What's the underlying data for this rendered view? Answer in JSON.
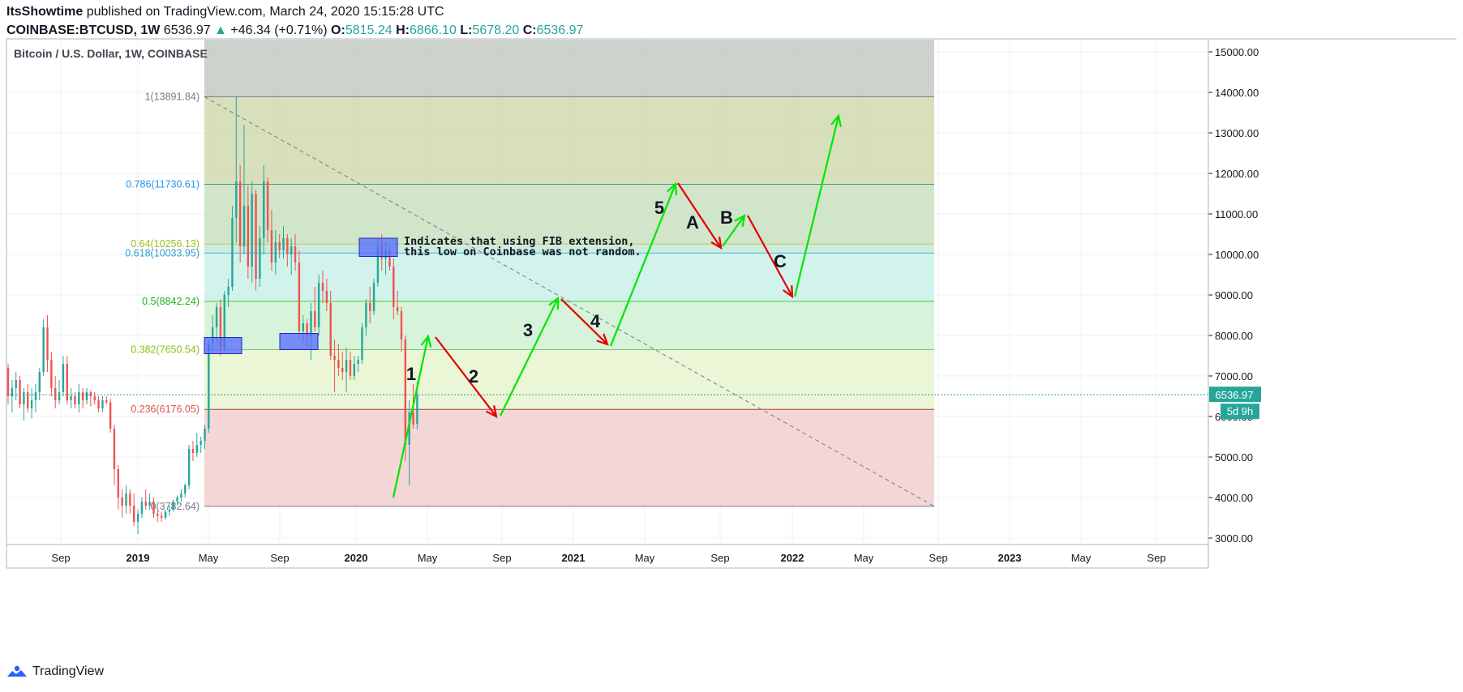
{
  "header": {
    "author": "ItsShowtime",
    "published_text": "published on TradingView.com, March 24, 2020 15:15:28 UTC",
    "symbol": "COINBASE:BTCUSD, 1W",
    "last_price": "6536.97",
    "change_arrow": "▲",
    "change": "+46.34 (+0.71%)",
    "o_label": "O:",
    "o_value": "5815.24",
    "h_label": "H:",
    "h_value": "6866.10",
    "l_label": "L:",
    "l_value": "5678.20",
    "c_label": "C:",
    "c_value": "6536.97"
  },
  "brand": {
    "name": "TradingView"
  },
  "colors": {
    "up": "#26a69a",
    "down": "#ef5350",
    "green_arrow": "#00e600",
    "red_arrow": "#e00000",
    "fib_blue": "#2196f3",
    "box_blue": "#3b4fd8"
  },
  "chart_data": {
    "type": "candlestick",
    "title": "Bitcoin / U.S. Dollar, 1W, COINBASE",
    "ylim": [
      2700,
      15300
    ],
    "y_ticks": [
      "3000.00",
      "4000.00",
      "5000.00",
      "6000.00",
      "7000.00",
      "8000.00",
      "9000.00",
      "10000.00",
      "11000.00",
      "12000.00",
      "13000.00",
      "14000.00",
      "15000.00"
    ],
    "x_ticks": [
      "Sep",
      "2019",
      "May",
      "Sep",
      "2020",
      "May",
      "Sep",
      "2021",
      "May",
      "Sep",
      "2022",
      "May",
      "Sep",
      "2023",
      "May",
      "Sep"
    ],
    "last_price_label": "6536.97",
    "countdown_label": "5d 9h",
    "grid": true,
    "fib_levels": [
      {
        "label": "1(13891.84)",
        "value": 13891.84
      },
      {
        "label": "0.786(11730.61)",
        "value": 11730.61
      },
      {
        "label": "0.64(10256.13)",
        "value": 10256.13
      },
      {
        "label": "0.618(10033.95)",
        "value": 10033.95
      },
      {
        "label": "0.5(8842.24)",
        "value": 8842.24
      },
      {
        "label": "0.382(7650.54)",
        "value": 7650.54
      },
      {
        "label": "0.236(6176.05)",
        "value": 6176.05
      },
      {
        "label": "0(3782.64)",
        "value": 3782.64
      }
    ],
    "annotation_text": [
      "Indicates that using FIB extension,",
      "this low on Coinbase was not random."
    ],
    "wave_labels": [
      "1",
      "2",
      "3",
      "4",
      "5",
      "A",
      "B",
      "C"
    ],
    "candles": [
      [
        7200,
        7300,
        6300,
        6500
      ],
      [
        6500,
        6900,
        6100,
        6700
      ],
      [
        6700,
        7100,
        6400,
        6900
      ],
      [
        6900,
        7000,
        6200,
        6300
      ],
      [
        6300,
        6700,
        5900,
        6600
      ],
      [
        6600,
        6800,
        6100,
        6200
      ],
      [
        6200,
        6700,
        5950,
        6400
      ],
      [
        6400,
        6800,
        6100,
        6600
      ],
      [
        6600,
        7200,
        6400,
        7100
      ],
      [
        7100,
        8400,
        7000,
        8200
      ],
      [
        8200,
        8500,
        7100,
        7400
      ],
      [
        7400,
        7600,
        6500,
        6700
      ],
      [
        6700,
        7000,
        6200,
        6400
      ],
      [
        6400,
        6900,
        6300,
        6600
      ],
      [
        6600,
        7500,
        6500,
        7300
      ],
      [
        7300,
        7500,
        6300,
        6400
      ],
      [
        6400,
        6700,
        6200,
        6500
      ],
      [
        6500,
        6600,
        6200,
        6300
      ],
      [
        6300,
        6800,
        6100,
        6600
      ],
      [
        6600,
        6700,
        6200,
        6400
      ],
      [
        6400,
        6700,
        6300,
        6600
      ],
      [
        6600,
        6650,
        6250,
        6500
      ],
      [
        6500,
        6600,
        6300,
        6400
      ],
      [
        6400,
        6500,
        6100,
        6200
      ],
      [
        6200,
        6500,
        6100,
        6400
      ],
      [
        6400,
        6500,
        6300,
        6350
      ],
      [
        6350,
        6450,
        5600,
        5700
      ],
      [
        5700,
        5800,
        4300,
        4700
      ],
      [
        4700,
        4800,
        3700,
        4000
      ],
      [
        4000,
        4200,
        3500,
        3800
      ],
      [
        3800,
        4300,
        3600,
        4100
      ],
      [
        4100,
        4200,
        3600,
        3800
      ],
      [
        3800,
        4100,
        3300,
        3400
      ],
      [
        3400,
        3700,
        3100,
        3600
      ],
      [
        3600,
        4000,
        3500,
        3900
      ],
      [
        3900,
        4200,
        3700,
        3800
      ],
      [
        3800,
        4100,
        3700,
        3900
      ],
      [
        3900,
        4000,
        3500,
        3600
      ],
      [
        3600,
        3700,
        3400,
        3550
      ],
      [
        3550,
        3650,
        3400,
        3500
      ],
      [
        3500,
        3700,
        3450,
        3650
      ],
      [
        3650,
        3800,
        3550,
        3700
      ],
      [
        3700,
        3950,
        3650,
        3900
      ],
      [
        3900,
        4050,
        3800,
        4000
      ],
      [
        4000,
        4200,
        3900,
        4100
      ],
      [
        4100,
        4350,
        4000,
        4300
      ],
      [
        4300,
        5300,
        4200,
        5200
      ],
      [
        5200,
        5400,
        4900,
        5100
      ],
      [
        5100,
        5600,
        5000,
        5300
      ],
      [
        5300,
        5500,
        5100,
        5400
      ],
      [
        5400,
        5800,
        5200,
        5700
      ],
      [
        5700,
        7900,
        5600,
        7800
      ],
      [
        7800,
        8500,
        7600,
        8200
      ],
      [
        8200,
        8800,
        7800,
        8700
      ],
      [
        8700,
        8900,
        7500,
        7700
      ],
      [
        7700,
        9100,
        7600,
        9000
      ],
      [
        9000,
        9400,
        8700,
        9200
      ],
      [
        9200,
        11200,
        9100,
        10900
      ],
      [
        10900,
        13900,
        10300,
        11800
      ],
      [
        11800,
        12200,
        9800,
        10200
      ],
      [
        10200,
        13200,
        10000,
        11200
      ],
      [
        11200,
        11700,
        9400,
        9700
      ],
      [
        9700,
        11800,
        9300,
        11500
      ],
      [
        11500,
        11600,
        9100,
        9400
      ],
      [
        9400,
        10700,
        9200,
        10400
      ],
      [
        10400,
        12200,
        10000,
        11800
      ],
      [
        11800,
        11900,
        10300,
        10600
      ],
      [
        10600,
        11100,
        9600,
        9800
      ],
      [
        9800,
        10600,
        9500,
        10300
      ],
      [
        10300,
        10500,
        9900,
        10100
      ],
      [
        10100,
        10700,
        9900,
        10400
      ],
      [
        10400,
        10500,
        9700,
        10000
      ],
      [
        10000,
        10400,
        9500,
        10200
      ],
      [
        10200,
        10500,
        9600,
        9800
      ],
      [
        9800,
        10100,
        7900,
        8100
      ],
      [
        8100,
        8500,
        7800,
        8300
      ],
      [
        8300,
        8400,
        7700,
        8000
      ],
      [
        8000,
        8800,
        7400,
        8600
      ],
      [
        8600,
        9200,
        8100,
        8200
      ],
      [
        8200,
        9500,
        8000,
        9300
      ],
      [
        9300,
        9600,
        8800,
        9100
      ],
      [
        9100,
        9400,
        8600,
        8800
      ],
      [
        8800,
        9100,
        7400,
        7500
      ],
      [
        7500,
        7900,
        6600,
        7400
      ],
      [
        7400,
        7800,
        7000,
        7200
      ],
      [
        7200,
        7600,
        6900,
        7100
      ],
      [
        7100,
        7700,
        6600,
        7400
      ],
      [
        7400,
        7600,
        6900,
        7000
      ],
      [
        7000,
        7500,
        6900,
        7300
      ],
      [
        7300,
        7500,
        7100,
        7400
      ],
      [
        7400,
        8300,
        7300,
        8200
      ],
      [
        8200,
        8900,
        8000,
        8800
      ],
      [
        8800,
        9200,
        8300,
        8600
      ],
      [
        8600,
        9400,
        8500,
        9300
      ],
      [
        9300,
        10400,
        9200,
        10200
      ],
      [
        10200,
        10500,
        9600,
        9900
      ],
      [
        9900,
        10300,
        9500,
        10100
      ],
      [
        10100,
        10200,
        9600,
        9700
      ],
      [
        9700,
        9900,
        8400,
        8700
      ],
      [
        8700,
        9100,
        8500,
        8600
      ],
      [
        8600,
        8700,
        7600,
        7900
      ],
      [
        7900,
        8000,
        4900,
        5300
      ],
      [
        5300,
        6400,
        4300,
        6100
      ],
      [
        6100,
        6800,
        5700,
        5800
      ],
      [
        5815.24,
        6866.1,
        5678.2,
        6536.97
      ]
    ]
  }
}
